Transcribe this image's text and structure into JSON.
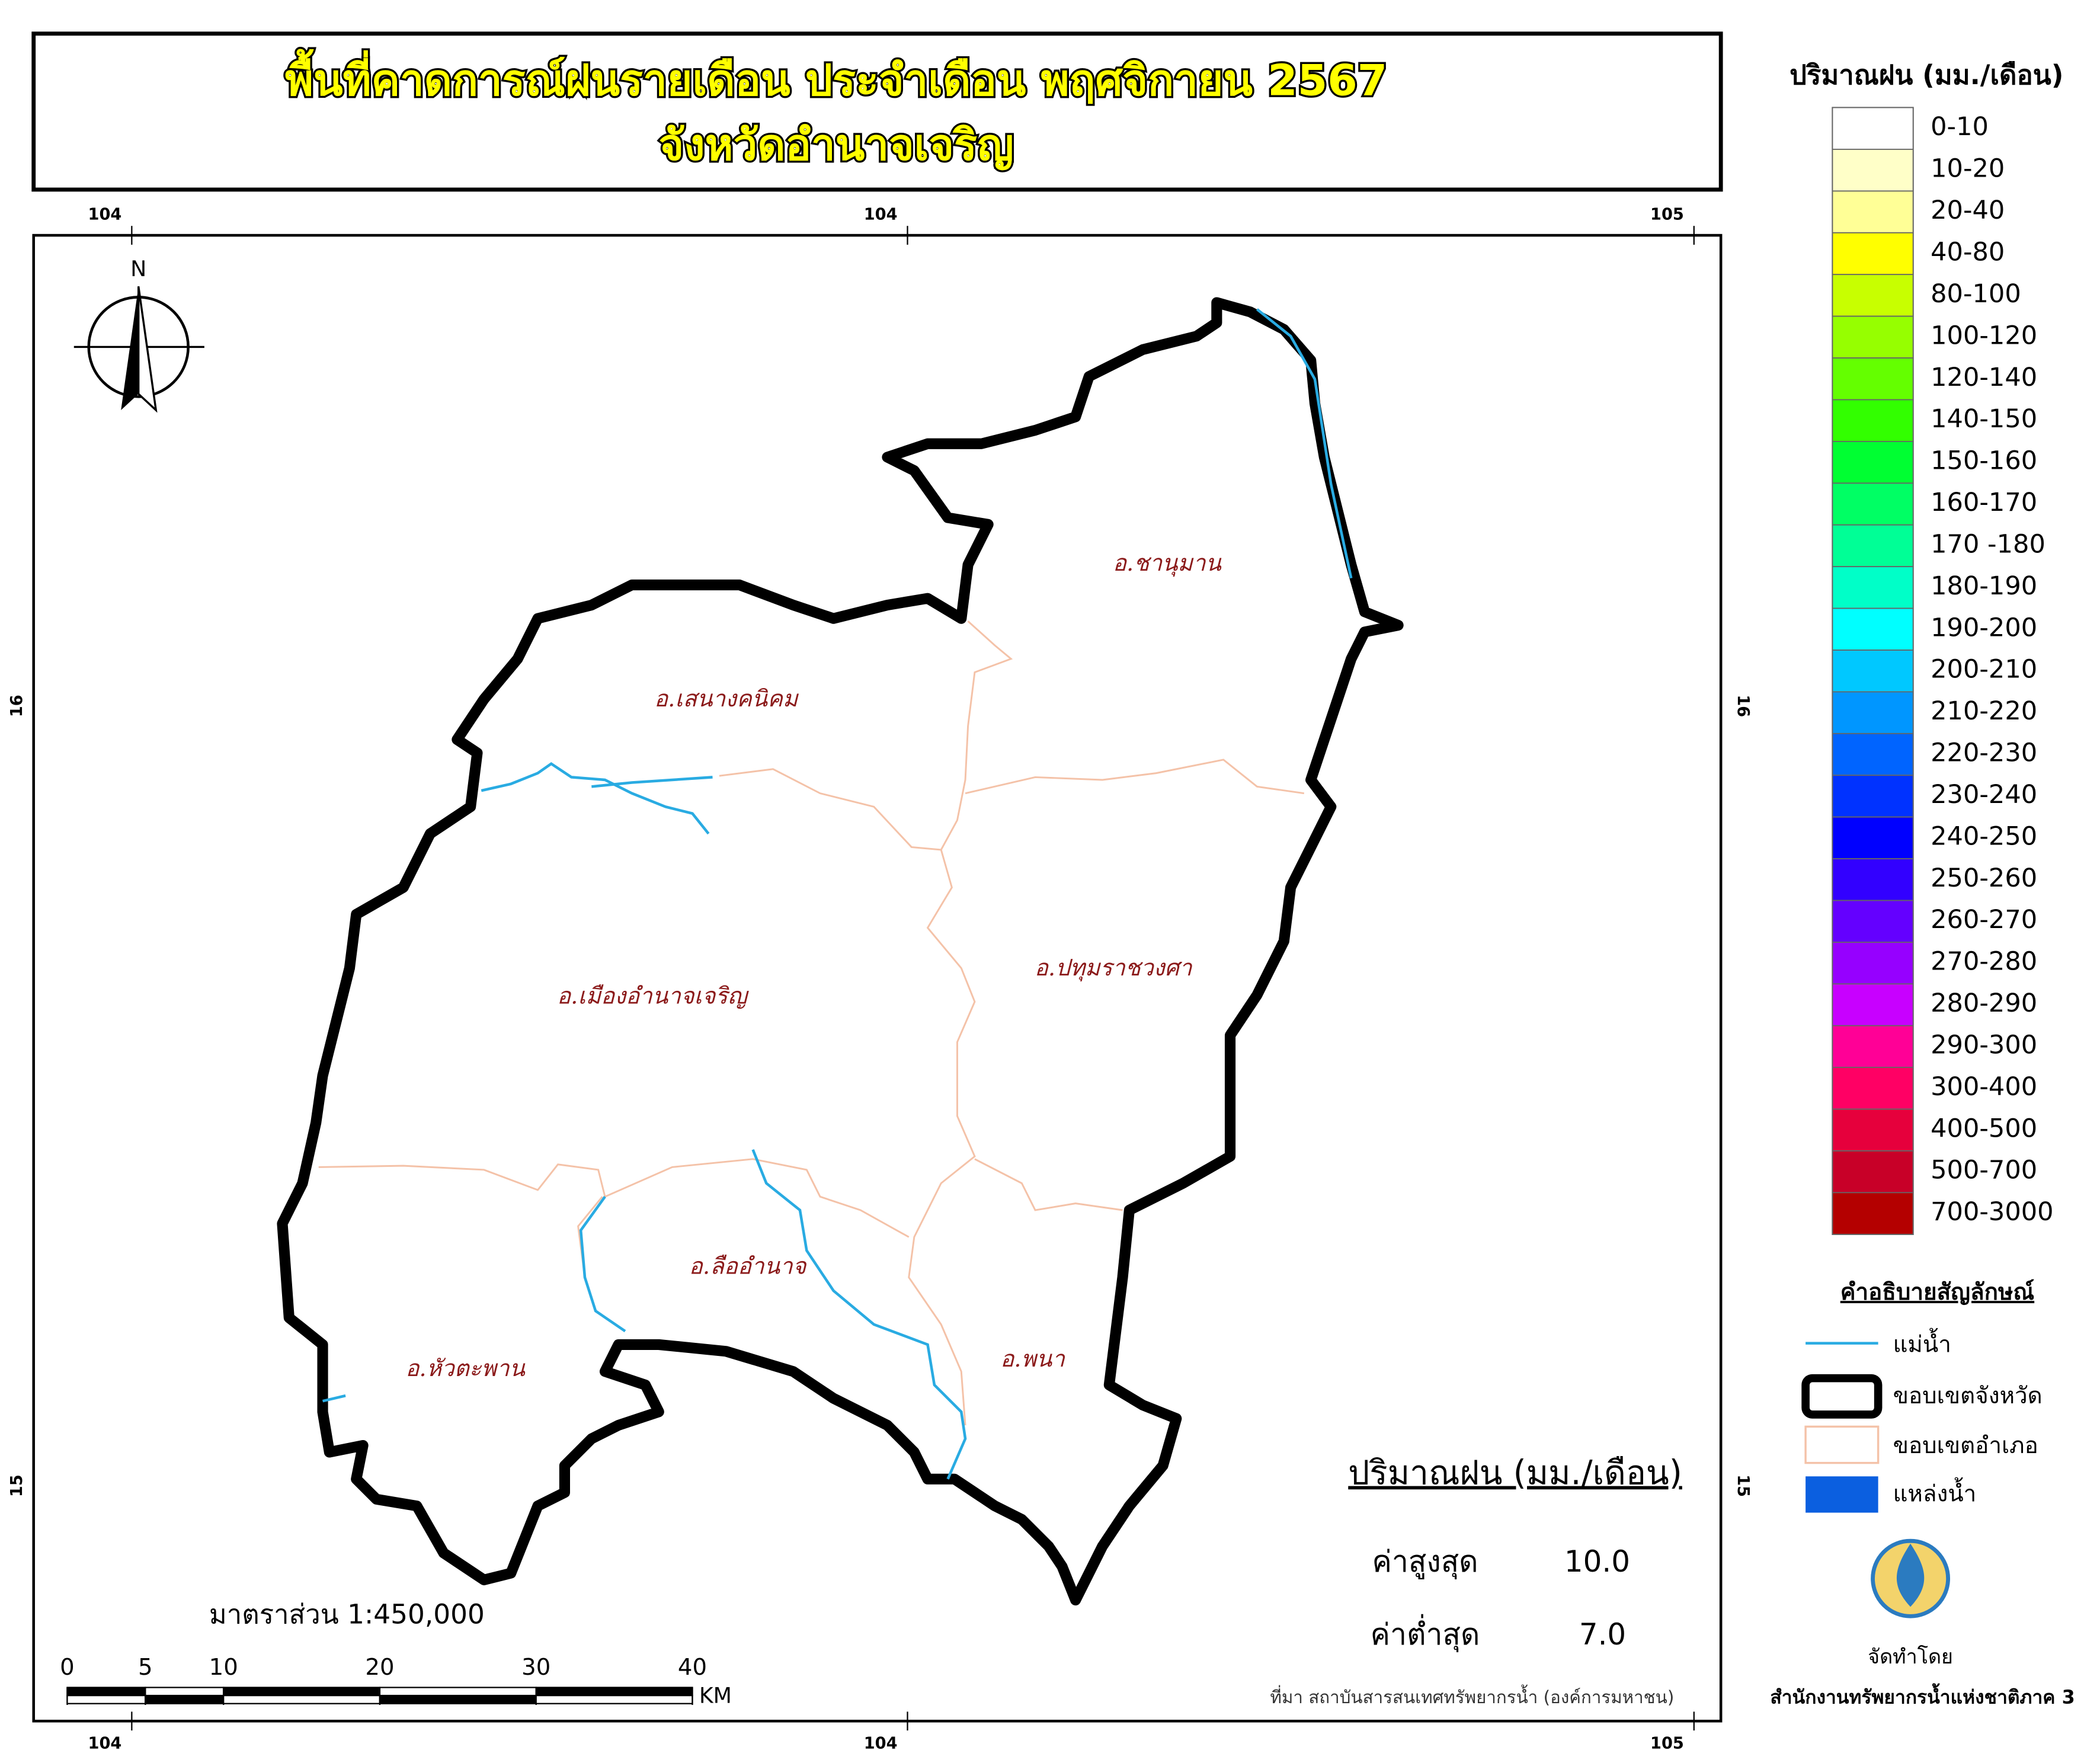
{
  "title": {
    "line1": "พื้นที่คาดการณ์ฝนรายเดือน ประจำเดือน พฤศจิกายน 2567",
    "line2": "จังหวัดอำนาจเจริญ"
  },
  "grid_labels": {
    "top": [
      "104",
      "104",
      "105"
    ],
    "bottom": [
      "104",
      "104",
      "105"
    ],
    "left": [
      "16",
      "15"
    ],
    "right": [
      "16",
      "15"
    ]
  },
  "north_label": "N",
  "districts": [
    "อ.ชานุมาน",
    "อ.เสนางคนิคม",
    "อ.เมืองอำนาจเจริญ",
    "อ.ปทุมราชวงศา",
    "อ.ลืออำนาจ",
    "อ.พนา",
    "อ.หัวตะพาน"
  ],
  "rain_legend": {
    "title": "ปริมาณฝน (มม./เดือน)",
    "classes": [
      {
        "label": "0-10",
        "color": "#ffffff"
      },
      {
        "label": "10-20",
        "color": "#ffffc8"
      },
      {
        "label": "20-40",
        "color": "#ffff96"
      },
      {
        "label": "40-80",
        "color": "#ffff00"
      },
      {
        "label": "80-100",
        "color": "#c8ff00"
      },
      {
        "label": "100-120",
        "color": "#96ff00"
      },
      {
        "label": "120-140",
        "color": "#64ff00"
      },
      {
        "label": "140-150",
        "color": "#32ff00"
      },
      {
        "label": "150-160",
        "color": "#00ff32"
      },
      {
        "label": "160-170",
        "color": "#00ff64"
      },
      {
        "label": "170 -180",
        "color": "#00ff96"
      },
      {
        "label": "180-190",
        "color": "#00ffc8"
      },
      {
        "label": "190-200",
        "color": "#00ffff"
      },
      {
        "label": "200-210",
        "color": "#00c8ff"
      },
      {
        "label": "210-220",
        "color": "#0096ff"
      },
      {
        "label": "220-230",
        "color": "#0064ff"
      },
      {
        "label": "230-240",
        "color": "#0032ff"
      },
      {
        "label": "240-250",
        "color": "#0000ff"
      },
      {
        "label": "250-260",
        "color": "#3200ff"
      },
      {
        "label": "260-270",
        "color": "#6400ff"
      },
      {
        "label": "270-280",
        "color": "#9600ff"
      },
      {
        "label": "280-290",
        "color": "#c800ff"
      },
      {
        "label": "290-300",
        "color": "#ff0096"
      },
      {
        "label": "300-400",
        "color": "#ff0064"
      },
      {
        "label": "400-500",
        "color": "#e6003c"
      },
      {
        "label": "500-700",
        "color": "#c80028"
      },
      {
        "label": "700-3000",
        "color": "#b40000"
      }
    ]
  },
  "symbol_legend": {
    "title": "คำอธิบายสัญลักษณ์",
    "items": [
      "แม่น้ำ",
      "ขอบเขตจังหวัด",
      "ขอบเขตอำเภอ",
      "แหล่งน้ำ"
    ]
  },
  "stats": {
    "title": "ปริมาณฝน (มม./เดือน)",
    "max_label": "ค่าสูงสุด",
    "max": "10.0",
    "min_label": "ค่าต่ำสุด",
    "min": "7.0"
  },
  "scale": {
    "text": "มาตราส่วน 1:450,000",
    "ticks": [
      0,
      5,
      10,
      20,
      30,
      40
    ],
    "unit": "KM"
  },
  "source": "ที่มา  สถาบันสารสนเทศทรัพยากรน้ำ (องค์การมหาชน)",
  "credit": {
    "label": "จัดทำโดย",
    "org": "สำนักงานทรัพยากรน้ำแห่งชาติภาค 3"
  }
}
